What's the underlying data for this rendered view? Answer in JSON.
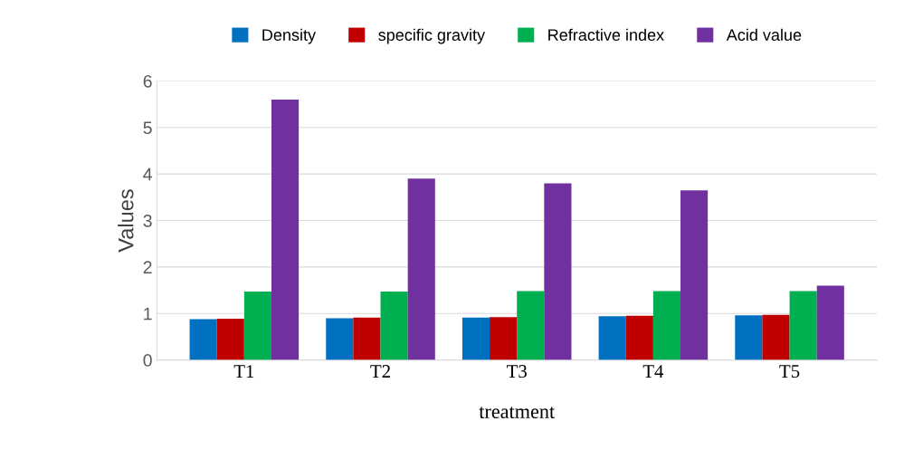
{
  "chart_data": {
    "type": "bar",
    "xlabel": "treatment",
    "ylabel": "Values",
    "categories": [
      "T1",
      "T2",
      "T3",
      "T4",
      "T5"
    ],
    "series": [
      {
        "name": "Density",
        "color": "#0070c0",
        "values": [
          0.88,
          0.9,
          0.91,
          0.94,
          0.96
        ]
      },
      {
        "name": "specific gravity",
        "color": "#c00000",
        "values": [
          0.89,
          0.91,
          0.92,
          0.95,
          0.97
        ]
      },
      {
        "name": "Refractive index",
        "color": "#00b050",
        "values": [
          1.47,
          1.47,
          1.48,
          1.48,
          1.48
        ]
      },
      {
        "name": "Acid value",
        "color": "#7030a0",
        "values": [
          5.6,
          3.9,
          3.8,
          3.65,
          1.6
        ]
      }
    ],
    "ylim": [
      0,
      6
    ],
    "yticks": [
      0,
      1,
      2,
      3,
      4,
      5,
      6
    ],
    "grid": "y",
    "legend": "top"
  }
}
